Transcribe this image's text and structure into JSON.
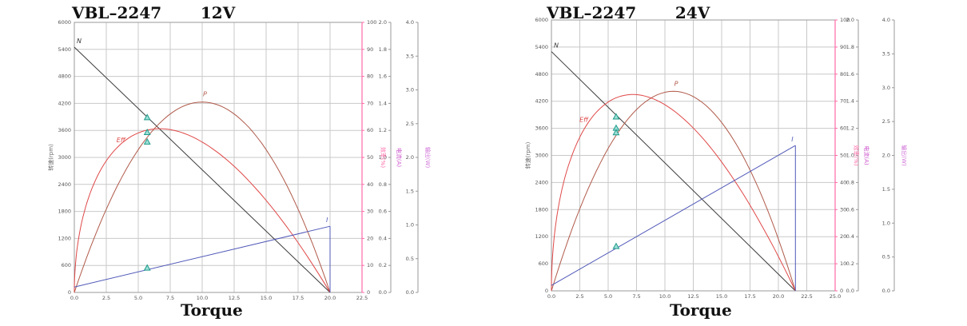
{
  "chart_data": [
    {
      "type": "line",
      "title": "VBL–2247       12V",
      "xlabel": "Torque",
      "ylabel": "转速(rpm)",
      "right_axis_labels": [
        "效率(%)",
        "电流(A)",
        "输出(W)"
      ],
      "x_ticks": [
        "0.0",
        "2.5",
        "5.0",
        "7.5",
        "10.0",
        "12.5",
        "15.0",
        "17.5",
        "20.0",
        "22.5"
      ],
      "y_ticks": [
        "0",
        "600",
        "1200",
        "1800",
        "2400",
        "3000",
        "3600",
        "4200",
        "4800",
        "5400",
        "6000"
      ],
      "y2_ticks": [
        "0",
        "10",
        "20",
        "30",
        "40",
        "50",
        "60",
        "70",
        "80",
        "90",
        "100"
      ],
      "y3_ticks": [
        "0.0",
        "0.2",
        "0.4",
        "0.6",
        "0.8",
        "1.0",
        "1.2",
        "1.4",
        "1.6",
        "1.8",
        "2.0"
      ],
      "y4_ticks": [
        "0.0",
        "0.5",
        "1.0",
        "1.5",
        "2.0",
        "2.5",
        "3.0",
        "3.5",
        "4.0"
      ],
      "xlim": [
        0,
        22.5
      ],
      "ylim": [
        0,
        6000
      ],
      "stall_torque": 20,
      "no_load_speed": 5450,
      "speed_left_scale_max": 6000,
      "max_power_value": 4230,
      "max_eff_torque": 4.3,
      "max_eff_value": 3440,
      "no_load_current_value": 120,
      "stall_current_value": 1470,
      "markers": [
        {
          "x": 5.7,
          "y": 3880,
          "series": "N"
        },
        {
          "x": 5.7,
          "y": 3550,
          "series": "P"
        },
        {
          "x": 5.7,
          "y": 3340,
          "series": "Eff"
        },
        {
          "x": 5.7,
          "y": 540,
          "series": "I"
        }
      ],
      "curve_labels": [
        "N",
        "P",
        "Eff",
        "I"
      ]
    },
    {
      "type": "line",
      "title": "VBL–2247       24V",
      "xlabel": "Torque",
      "ylabel": "转速(rpm)",
      "right_axis_labels": [
        "效率(%)",
        "电流(A)",
        "输出(W)"
      ],
      "x_ticks": [
        "0.0",
        "2.5",
        "5.0",
        "7.5",
        "10.0",
        "12.5",
        "15.0",
        "17.5",
        "20.0",
        "22.5",
        "25.0"
      ],
      "y_ticks": [
        "0",
        "600",
        "1200",
        "1800",
        "2400",
        "3000",
        "3600",
        "4200",
        "4800",
        "5400",
        "6000"
      ],
      "y2_ticks": [
        "0",
        "10",
        "20",
        "30",
        "40",
        "50",
        "60",
        "70",
        "80",
        "90",
        "100"
      ],
      "y3_ticks": [
        "0.0",
        "0.2",
        "0.4",
        "0.6",
        "0.8",
        "1.0",
        "1.2",
        "1.4",
        "1.6",
        "1.8",
        "2.0"
      ],
      "y4_ticks": [
        "0.0",
        "0.5",
        "1.0",
        "1.5",
        "2.0",
        "2.5",
        "3.0",
        "3.5",
        "4.0"
      ],
      "xlim": [
        0,
        25
      ],
      "ylim": [
        0,
        6000
      ],
      "stall_torque": 21.5,
      "no_load_speed": 5300,
      "max_power_value": 4420,
      "max_eff_torque": 3.6,
      "max_eff_value": 3850,
      "no_load_current_value": 120,
      "stall_current_value": 3220,
      "markers": [
        {
          "x": 5.7,
          "y": 3850,
          "series": "N"
        },
        {
          "x": 5.7,
          "y": 3600,
          "series": "P"
        },
        {
          "x": 5.7,
          "y": 3500,
          "series": "Eff"
        },
        {
          "x": 5.7,
          "y": 980,
          "series": "I"
        }
      ],
      "curve_labels": [
        "N",
        "P",
        "Eff",
        "I"
      ]
    }
  ],
  "colors": {
    "speed": "#3a3a3a",
    "power": "#b05a4a",
    "efficiency": "#e04848",
    "current": "#5058b8",
    "marker_fill": "#9fe0d8",
    "marker_stroke": "#1e9a8a",
    "grid": "#c9c9c9",
    "eff_axis": "#ff6aa8",
    "current_axis": "#cc55cc",
    "power_axis": "#d070d8",
    "axis_text": "#555555"
  }
}
